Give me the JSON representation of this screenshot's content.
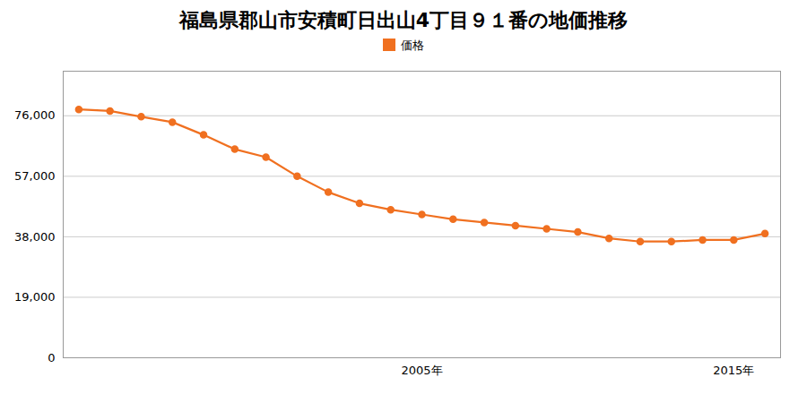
{
  "chart_data": {
    "type": "line",
    "title": "福島県郡山市安積町日出山4丁目９１番の地価推移",
    "x": [
      1994,
      1995,
      1996,
      1997,
      1998,
      1999,
      2000,
      2001,
      2002,
      2003,
      2004,
      2005,
      2006,
      2007,
      2008,
      2009,
      2010,
      2011,
      2012,
      2013,
      2014,
      2015,
      2016
    ],
    "series": [
      {
        "name": "価格",
        "color": "#f07020",
        "marker": "circle",
        "line_style": "solid",
        "values": [
          78000,
          77500,
          75700,
          74000,
          70000,
          65500,
          63000,
          57000,
          52000,
          48500,
          46500,
          45000,
          43500,
          42500,
          41500,
          40500,
          39500,
          37500,
          36500,
          36500,
          37000,
          37000,
          39000
        ]
      }
    ],
    "xlim": [
      1993.5,
      2016.5
    ],
    "xticks": [
      {
        "value": 2005,
        "label": "2005年"
      },
      {
        "value": 2015,
        "label": "2015年"
      }
    ],
    "ylim": [
      0,
      90000
    ],
    "yticks": [
      0,
      {
        "value": 19000,
        "label": "19,000"
      },
      {
        "value": 38000,
        "label": "38,000"
      },
      {
        "value": 57000,
        "label": "57,000"
      },
      {
        "value": 76000,
        "label": "76,000"
      }
    ],
    "grid": true,
    "legend": "top"
  }
}
